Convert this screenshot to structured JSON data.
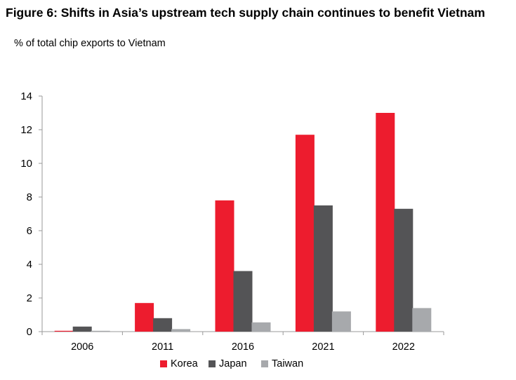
{
  "title": "Figure 6: Shifts in Asia’s upstream tech supply chain continues to benefit Vietnam",
  "subtitle": "% of total chip exports to Vietnam",
  "chart_data": {
    "type": "bar",
    "title": "Figure 6: Shifts in Asia’s upstream tech supply chain continues to benefit Vietnam",
    "ylabel": "% of total chip exports to Vietnam",
    "categories": [
      "2006",
      "2011",
      "2016",
      "2021",
      "2022"
    ],
    "ylim": [
      0,
      14
    ],
    "yticks": [
      0,
      2,
      4,
      6,
      8,
      10,
      12,
      14
    ],
    "grid": false,
    "legend_position": "bottom",
    "series": [
      {
        "name": "Korea",
        "color": "#ed1c2e",
        "values": [
          0.05,
          1.7,
          7.8,
          11.7,
          13.0
        ]
      },
      {
        "name": "Japan",
        "color": "#545456",
        "values": [
          0.3,
          0.8,
          3.6,
          7.5,
          7.3
        ]
      },
      {
        "name": "Taiwan",
        "color": "#a7a9ac",
        "values": [
          0.05,
          0.15,
          0.55,
          1.2,
          1.4
        ]
      }
    ]
  }
}
